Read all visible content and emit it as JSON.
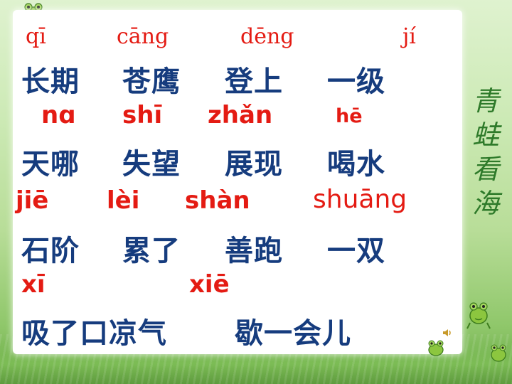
{
  "title": [
    "青",
    "蛙",
    "看",
    "海"
  ],
  "rows": {
    "r1_py": [
      "qī",
      "cāng",
      "dēng",
      "jí"
    ],
    "r1_hz": [
      "长期",
      "苍鹰",
      "登上",
      "一级"
    ],
    "r2_py": [
      "nɑ",
      "shī",
      "zhǎn",
      "hē"
    ],
    "r2_hz": [
      "天哪",
      "失望",
      "展现",
      "喝水"
    ],
    "r3_py": [
      "jiē",
      "lèi",
      "shàn",
      "shuāng"
    ],
    "r3_hz": [
      "石阶",
      "累了",
      "善跑",
      "一双"
    ],
    "r4_py": [
      "xī",
      "xiē"
    ],
    "r4_hz": [
      "吸了口凉气",
      "歇一会儿"
    ]
  },
  "colors": {
    "pinyin": "#e41b13",
    "hanzi": "#163c7e",
    "title": "#2e7a2a"
  },
  "icons": [
    "frog-icon",
    "speaker-icon"
  ]
}
